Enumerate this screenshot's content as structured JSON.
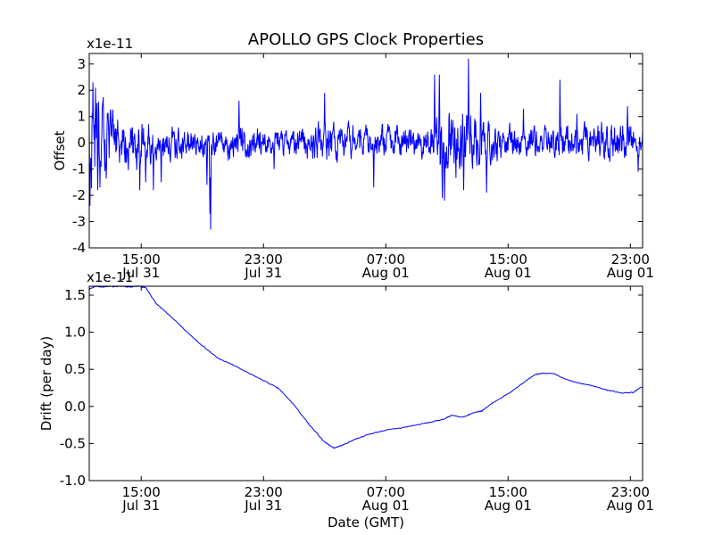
{
  "title": "APOLLO GPS Clock Properties",
  "colors": {
    "line": "#0000ff",
    "axes": "#000000",
    "background": "#ffffff"
  },
  "chart_data": [
    {
      "type": "line",
      "name": "offset",
      "ylabel": "Offset",
      "xlabel": "",
      "multiplier_label": "x1e-11",
      "ylim": [
        -4,
        3.4
      ],
      "yticks": [
        -4,
        -3,
        -2,
        -1,
        0,
        1,
        2,
        3
      ],
      "ytick_labels": [
        "-4",
        "-3",
        "-2",
        "-1",
        "0",
        "1",
        "2",
        "3"
      ],
      "xlim_hours": [
        11.6,
        47.8
      ],
      "xticks_hours": [
        15,
        23,
        31,
        39,
        47
      ],
      "xtick_labels": [
        [
          "15:00",
          "Jul 31"
        ],
        [
          "23:00",
          "Jul 31"
        ],
        [
          "07:00",
          "Aug 01"
        ],
        [
          "15:00",
          "Aug 01"
        ],
        [
          "23:00",
          "Aug 01"
        ]
      ],
      "series": [
        {
          "name": "offset",
          "noise_amplitude": 0.3,
          "envelope": [
            [
              11.6,
              1.6
            ],
            [
              13.0,
              0.9
            ],
            [
              16.0,
              0.5
            ],
            [
              18.0,
              0.4
            ],
            [
              20.0,
              0.4
            ],
            [
              22.0,
              0.5
            ],
            [
              24.0,
              0.35
            ],
            [
              26.0,
              0.45
            ],
            [
              27.0,
              0.6
            ],
            [
              29.0,
              0.45
            ],
            [
              31.0,
              0.5
            ],
            [
              34.0,
              0.5
            ],
            [
              35.0,
              1.1
            ],
            [
              36.5,
              0.9
            ],
            [
              38.0,
              0.5
            ],
            [
              41.0,
              0.4
            ],
            [
              44.0,
              0.55
            ],
            [
              47.8,
              0.5
            ]
          ],
          "spikes": [
            {
              "x": 11.65,
              "y": -2.4
            },
            {
              "x": 11.85,
              "y": 2.3
            },
            {
              "x": 12.0,
              "y": 2.1
            },
            {
              "x": 12.15,
              "y": -1.8
            },
            {
              "x": 12.3,
              "y": -1.7
            },
            {
              "x": 14.9,
              "y": -1.8
            },
            {
              "x": 15.3,
              "y": -1.5
            },
            {
              "x": 15.8,
              "y": -1.8
            },
            {
              "x": 16.3,
              "y": -1.5
            },
            {
              "x": 19.3,
              "y": -1.6
            },
            {
              "x": 19.5,
              "y": -2.7
            },
            {
              "x": 19.55,
              "y": -3.3
            },
            {
              "x": 21.4,
              "y": 1.6
            },
            {
              "x": 23.7,
              "y": -1.0
            },
            {
              "x": 27.0,
              "y": 1.9
            },
            {
              "x": 30.2,
              "y": -1.7
            },
            {
              "x": 34.2,
              "y": 2.6
            },
            {
              "x": 34.5,
              "y": 2.6
            },
            {
              "x": 34.7,
              "y": -2.1
            },
            {
              "x": 34.85,
              "y": -2.2
            },
            {
              "x": 36.1,
              "y": -1.8
            },
            {
              "x": 36.4,
              "y": 3.2
            },
            {
              "x": 37.2,
              "y": 1.9
            },
            {
              "x": 37.6,
              "y": -1.9
            },
            {
              "x": 40.0,
              "y": 1.3
            },
            {
              "x": 42.4,
              "y": 2.4
            },
            {
              "x": 43.5,
              "y": 1.1
            },
            {
              "x": 46.8,
              "y": 1.4
            },
            {
              "x": 47.5,
              "y": -1.1
            }
          ]
        }
      ]
    },
    {
      "type": "line",
      "name": "drift",
      "ylabel": "Drift (per day)",
      "xlabel": "Date (GMT)",
      "multiplier_label": "x1e-11",
      "ylim": [
        -1.0,
        1.62
      ],
      "yticks": [
        -1.0,
        -0.5,
        0.0,
        0.5,
        1.0,
        1.5
      ],
      "ytick_labels": [
        "-1.0",
        "-0.5",
        "0.0",
        "0.5",
        "1.0",
        "1.5"
      ],
      "xlim_hours": [
        11.6,
        47.8
      ],
      "xticks_hours": [
        15,
        23,
        31,
        39,
        47
      ],
      "xtick_labels": [
        [
          "15:00",
          "Jul 31"
        ],
        [
          "23:00",
          "Jul 31"
        ],
        [
          "07:00",
          "Aug 01"
        ],
        [
          "15:00",
          "Aug 01"
        ],
        [
          "23:00",
          "Aug 01"
        ]
      ],
      "series": [
        {
          "name": "drift",
          "x_hours": [
            11.6,
            12.0,
            12.5,
            13.5,
            14.3,
            14.8,
            15.3,
            16.0,
            17.0,
            18.0,
            19.0,
            20.0,
            21.0,
            22.0,
            23.0,
            24.0,
            25.0,
            26.0,
            27.0,
            27.6,
            28.2,
            29.0,
            30.0,
            31.0,
            32.0,
            33.0,
            34.0,
            34.8,
            35.3,
            36.0,
            36.8,
            37.3,
            38.0,
            39.0,
            40.0,
            40.8,
            41.3,
            42.0,
            42.7,
            43.5,
            44.5,
            45.5,
            46.5,
            47.2,
            47.8
          ],
          "values": [
            1.58,
            1.62,
            1.61,
            1.62,
            1.61,
            1.62,
            1.6,
            1.38,
            1.2,
            1.0,
            0.82,
            0.65,
            0.56,
            0.45,
            0.35,
            0.24,
            0.02,
            -0.25,
            -0.48,
            -0.56,
            -0.52,
            -0.44,
            -0.37,
            -0.32,
            -0.29,
            -0.25,
            -0.21,
            -0.17,
            -0.12,
            -0.15,
            -0.08,
            -0.06,
            0.05,
            0.17,
            0.32,
            0.43,
            0.45,
            0.44,
            0.37,
            0.32,
            0.28,
            0.22,
            0.18,
            0.19,
            0.27
          ]
        }
      ]
    }
  ]
}
